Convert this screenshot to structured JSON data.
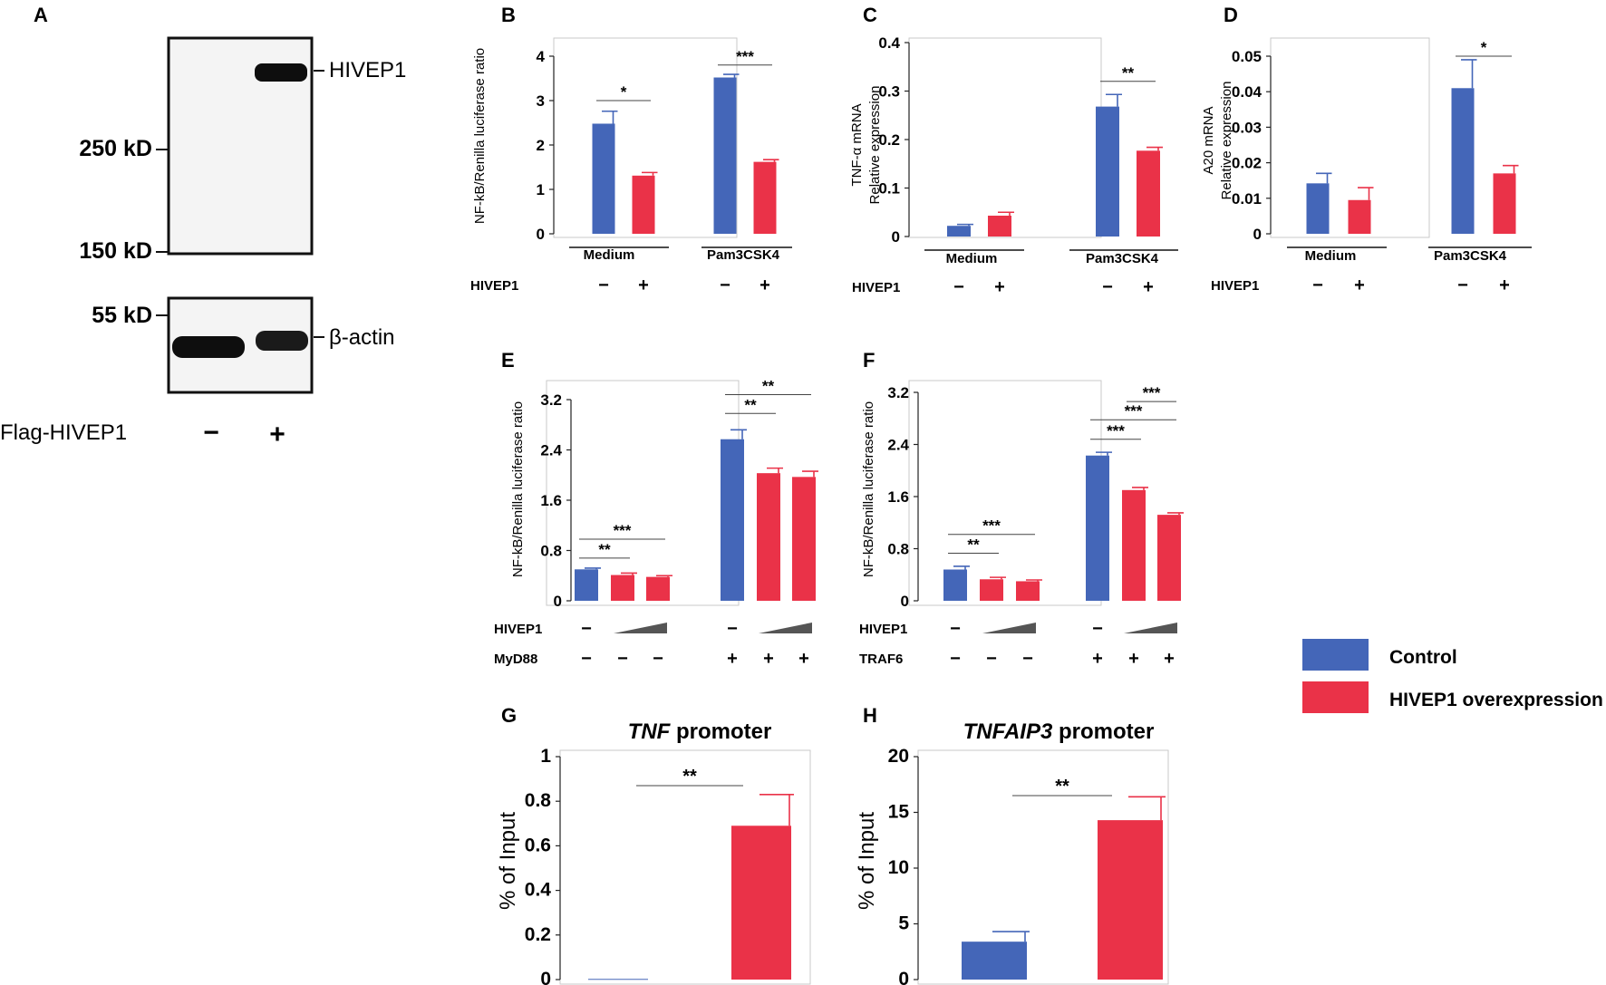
{
  "colors": {
    "control": "#4466b8",
    "hivep1": "#ea3248",
    "axis": "#222222",
    "frame": "#c9c9c9",
    "blot_bg": "#f3f3f3"
  },
  "legend": {
    "items": [
      {
        "label": "Control",
        "color": "#4466b8"
      },
      {
        "label": "HIVEP1 overexpression",
        "color": "#ea3248"
      }
    ]
  },
  "panel_a": {
    "letter": "A",
    "band_label": "HIVEP1",
    "actin_label": "β-actin",
    "markers": [
      "250 kD",
      "150 kD",
      "55 kD"
    ],
    "lane_label": "Flag-HIVEP1",
    "lane_signs": [
      "−",
      "+"
    ]
  },
  "chart_data": [
    {
      "id": "B",
      "type": "bar",
      "title": "",
      "ylabel": "NF-kB/Renilla luciferase ratio",
      "ylim": [
        0,
        4
      ],
      "yticks": [
        "0",
        "1",
        "2",
        "3",
        "4"
      ],
      "groups": [
        "Medium",
        "Pam3CSK4"
      ],
      "row_labels": [
        "HIVEP1"
      ],
      "rows": [
        [
          "−",
          "+",
          "−",
          "+"
        ]
      ],
      "bars": [
        {
          "series": "control",
          "value": 2.48,
          "error": 0.28
        },
        {
          "series": "hivep1",
          "value": 1.31,
          "error": 0.07
        },
        {
          "series": "control",
          "value": 3.52,
          "error": 0.07
        },
        {
          "series": "hivep1",
          "value": 1.62,
          "error": 0.05
        }
      ],
      "sig": [
        {
          "label": "*",
          "from": 0,
          "to": 1,
          "level": 3.0
        },
        {
          "label": "***",
          "from": 2,
          "to": 3,
          "level": 3.8
        }
      ]
    },
    {
      "id": "C",
      "type": "bar",
      "title": "",
      "ylabel": "TNF-α mRNA",
      "ylabel2": "Relative expression",
      "ylim": [
        0,
        0.4
      ],
      "yticks": [
        "0",
        "0.1",
        "0.2",
        "0.3",
        "0.4"
      ],
      "groups": [
        "Medium",
        "Pam3CSK4"
      ],
      "row_labels": [
        "HIVEP1"
      ],
      "rows": [
        [
          "−",
          "+",
          "−",
          "+"
        ]
      ],
      "bars": [
        {
          "series": "control",
          "value": 0.022,
          "error": 0.003
        },
        {
          "series": "hivep1",
          "value": 0.043,
          "error": 0.007
        },
        {
          "series": "control",
          "value": 0.268,
          "error": 0.025
        },
        {
          "series": "hivep1",
          "value": 0.177,
          "error": 0.007
        }
      ],
      "sig": [
        {
          "label": "**",
          "from": 2,
          "to": 3,
          "level": 0.32
        }
      ]
    },
    {
      "id": "D",
      "type": "bar",
      "title": "",
      "ylabel": "A20 mRNA",
      "ylabel2": "Relative expression",
      "ylim": [
        0,
        0.05
      ],
      "yticks": [
        "0",
        "0.01",
        "0.02",
        "0.03",
        "0.04",
        "0.05"
      ],
      "groups": [
        "Medium",
        "Pam3CSK4"
      ],
      "row_labels": [
        "HIVEP1"
      ],
      "rows": [
        [
          "−",
          "+",
          "−",
          "+"
        ]
      ],
      "bars": [
        {
          "series": "control",
          "value": 0.0142,
          "error": 0.0028
        },
        {
          "series": "hivep1",
          "value": 0.0095,
          "error": 0.0035
        },
        {
          "series": "control",
          "value": 0.041,
          "error": 0.008
        },
        {
          "series": "hivep1",
          "value": 0.017,
          "error": 0.0022
        }
      ],
      "sig": [
        {
          "label": "*",
          "from": 2,
          "to": 3,
          "level": 0.05
        }
      ]
    },
    {
      "id": "E",
      "type": "bar",
      "title": "",
      "ylabel": "NF-kB/Renilla luciferase ratio",
      "ylim": [
        0,
        3.2
      ],
      "yticks": [
        "0",
        "0.8",
        "1.6",
        "2.4",
        "3.2"
      ],
      "groups": [],
      "row_labels": [
        "HIVEP1",
        "MyD88"
      ],
      "rows": [
        [
          "−",
          "ramp",
          "−",
          "ramp"
        ],
        [
          "−",
          "−",
          "−",
          "+",
          "+",
          "+"
        ]
      ],
      "bars": [
        {
          "series": "control",
          "value": 0.5,
          "error": 0.02
        },
        {
          "series": "hivep1",
          "value": 0.41,
          "error": 0.03
        },
        {
          "series": "hivep1",
          "value": 0.38,
          "error": 0.02
        },
        {
          "series": "control",
          "value": 2.57,
          "error": 0.15
        },
        {
          "series": "hivep1",
          "value": 2.03,
          "error": 0.08
        },
        {
          "series": "hivep1",
          "value": 1.97,
          "error": 0.09
        }
      ],
      "sig": [
        {
          "label": "**",
          "from": 0,
          "to": 1,
          "level": 0.68
        },
        {
          "label": "***",
          "from": 0,
          "to": 2,
          "level": 0.98
        },
        {
          "label": "**",
          "from": 3,
          "to": 4,
          "level": 2.98
        },
        {
          "label": "**",
          "from": 3,
          "to": 5,
          "level": 3.28
        }
      ]
    },
    {
      "id": "F",
      "type": "bar",
      "title": "",
      "ylabel": "NF-kB/Renilla luciferase ratio",
      "ylim": [
        0,
        3.2
      ],
      "yticks": [
        "0",
        "0.8",
        "1.6",
        "2.4",
        "3.2"
      ],
      "groups": [],
      "row_labels": [
        "HIVEP1",
        "TRAF6"
      ],
      "rows": [
        [
          "−",
          "ramp",
          "−",
          "ramp"
        ],
        [
          "−",
          "−",
          "−",
          "+",
          "+",
          "+"
        ]
      ],
      "bars": [
        {
          "series": "control",
          "value": 0.48,
          "error": 0.05
        },
        {
          "series": "hivep1",
          "value": 0.33,
          "error": 0.03
        },
        {
          "series": "hivep1",
          "value": 0.3,
          "error": 0.02
        },
        {
          "series": "control",
          "value": 2.23,
          "error": 0.05
        },
        {
          "series": "hivep1",
          "value": 1.7,
          "error": 0.04
        },
        {
          "series": "hivep1",
          "value": 1.32,
          "error": 0.03
        }
      ],
      "sig": [
        {
          "label": "**",
          "from": 0,
          "to": 1,
          "level": 0.73
        },
        {
          "label": "***",
          "from": 0,
          "to": 2,
          "level": 1.02
        },
        {
          "label": "***",
          "from": 3,
          "to": 4,
          "level": 2.48
        },
        {
          "label": "***",
          "from": 3,
          "to": 5,
          "level": 2.78
        },
        {
          "label": "***",
          "from": 4,
          "to": 5,
          "level": 3.06
        }
      ]
    },
    {
      "id": "G",
      "type": "bar",
      "title_italic": "TNF",
      "title_rest": " promoter",
      "ylabel": "% of Input",
      "ylim": [
        0,
        1
      ],
      "yticks": [
        "0",
        "0.2",
        "0.4",
        "0.6",
        "0.8",
        "1"
      ],
      "groups": [],
      "row_labels": [],
      "rows": [],
      "bars": [
        {
          "series": "control",
          "value": 0.003,
          "error": 0
        },
        {
          "series": "hivep1",
          "value": 0.69,
          "error": 0.14
        }
      ],
      "sig": [
        {
          "label": "**",
          "from": 0,
          "to": 1,
          "level": 0.87
        }
      ]
    },
    {
      "id": "H",
      "type": "bar",
      "title_italic": "TNFAIP3",
      "title_rest": " promoter",
      "ylabel": "% of Input",
      "ylim": [
        0,
        20
      ],
      "yticks": [
        "0",
        "5",
        "10",
        "15",
        "20"
      ],
      "groups": [],
      "row_labels": [],
      "rows": [],
      "bars": [
        {
          "series": "control",
          "value": 3.4,
          "error": 0.9
        },
        {
          "series": "hivep1",
          "value": 14.3,
          "error": 2.1
        }
      ],
      "sig": [
        {
          "label": "**",
          "from": 0,
          "to": 1,
          "level": 16.5
        }
      ]
    }
  ]
}
